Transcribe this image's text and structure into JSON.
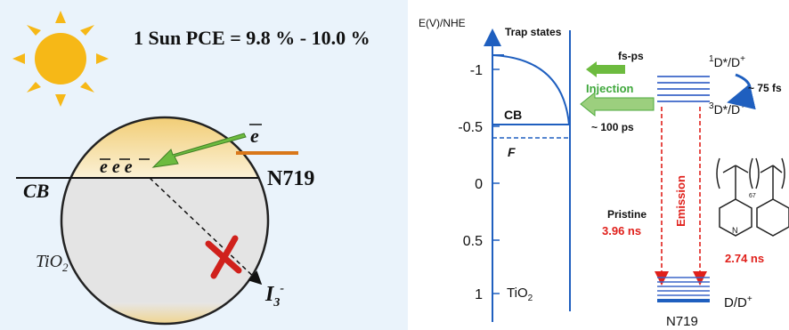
{
  "left_panel": {
    "pce_label": "1 Sun PCE = 9.8 % - 10.0 %",
    "electron_symbol": "e",
    "electrons_in_cb": "e  e  e",
    "cb_label": "CB",
    "dye_name": "N719",
    "tio2_label": "TiO",
    "tio2_sub": "2",
    "redox_label": "I",
    "redox_sub": "3",
    "redox_sup": "-",
    "colors": {
      "sun": "#f6b817",
      "dye_line": "#d9771a",
      "arrow_green": "#6dbb3f",
      "blocked_cross": "#d0211c",
      "sphere_top": "#f3d58a",
      "sphere_body": "#e6e6e6"
    },
    "icons": [
      "sun-icon",
      "cross-icon"
    ]
  },
  "right_panel": {
    "y_axis_label": "E(V)/NHE",
    "y_ticks": [
      "-1",
      "-0.5",
      "0",
      "0.5",
      "1"
    ],
    "trap_states_label": "Trap states",
    "cb_label": "CB",
    "fermi_label": "F",
    "tio2_label": "TiO",
    "tio2_sub": "2",
    "fsps_label": "fs-ps",
    "injection_label": "Injection",
    "time_100ps": "~ 100 ps",
    "singlet_label": "D*/D",
    "singlet_pre": "1",
    "singlet_post": "+",
    "triplet_label": "D*/D",
    "triplet_pre": "3",
    "triplet_post": "+",
    "time_75fs": "~ 75 fs",
    "emission_label": "Emission",
    "pristine_label": "Pristine",
    "pristine_time": "3.96 ns",
    "polymer_time": "2.74 ns",
    "ground_label": "D/D",
    "ground_post": "+",
    "dye_name": "N719",
    "polymer_subscript": "67",
    "colors": {
      "axis_blue": "#1f5fbf",
      "level_blue": "#3b66c8",
      "green": "#4caa3c",
      "red": "#e0201b"
    }
  }
}
